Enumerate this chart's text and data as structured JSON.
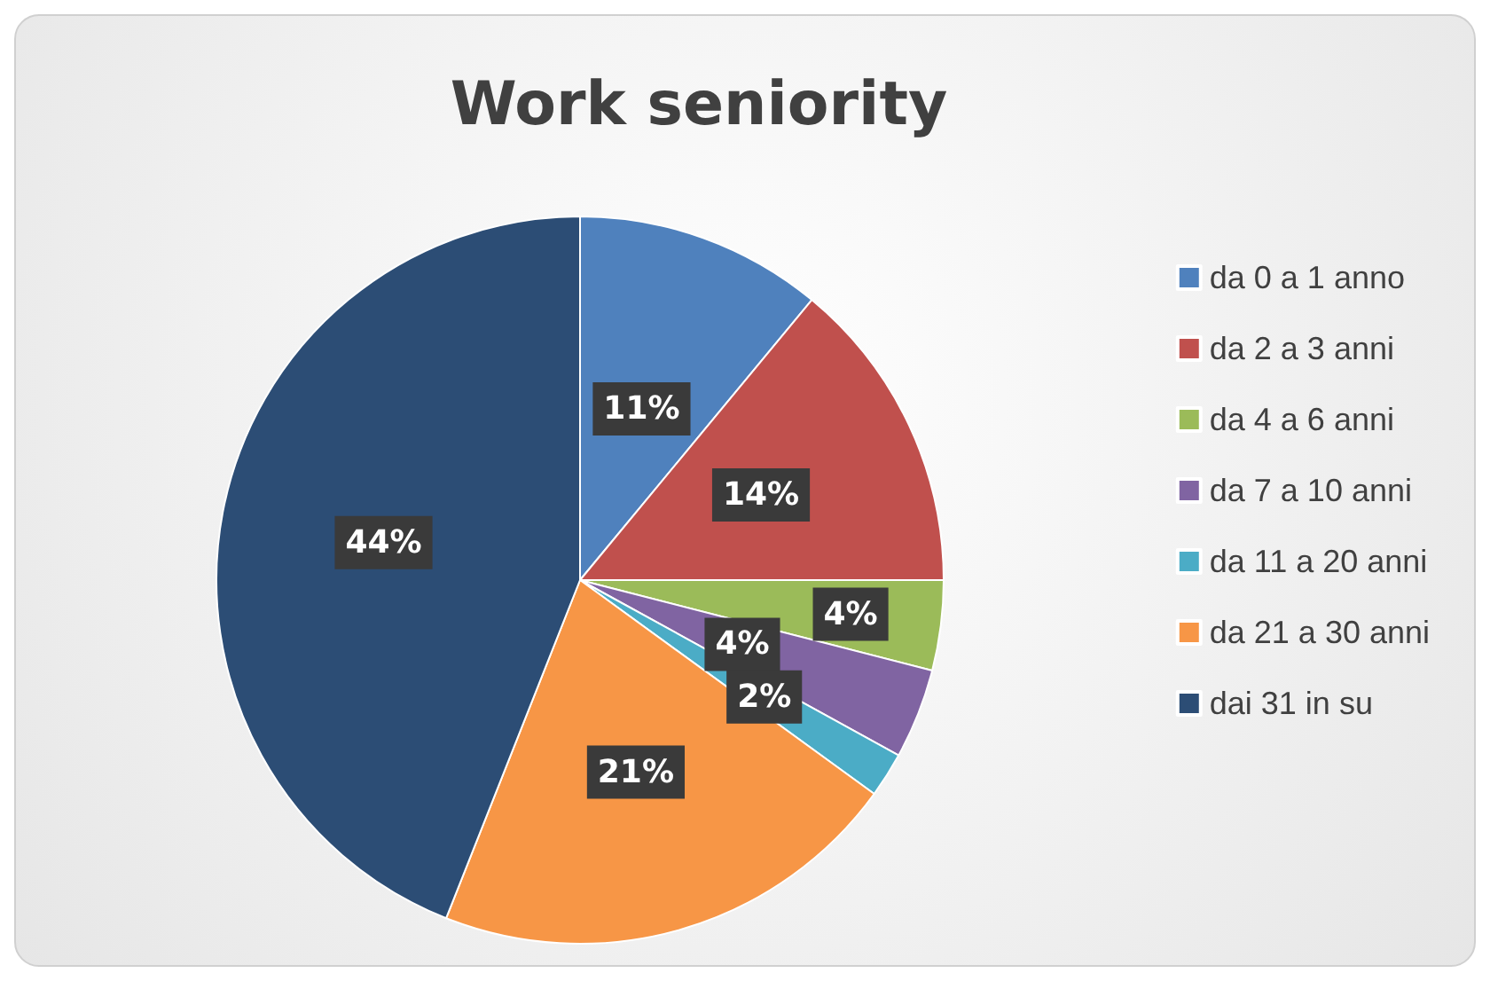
{
  "chart_data": {
    "type": "pie",
    "title": "Work seniority",
    "categories": [
      "da 0 a 1 anno",
      "da 2 a 3 anni",
      "da 4 a 6 anni",
      "da 7 a 10 anni",
      "da 11 a 20 anni",
      "da 21 a 30 anni",
      "dai 31 in su"
    ],
    "values": [
      11,
      14,
      4,
      4,
      2,
      21,
      44
    ],
    "colors": [
      "#4f81bd",
      "#c0504d",
      "#9bbb59",
      "#8064a2",
      "#4bacc6",
      "#f79646",
      "#2c4d75"
    ],
    "value_labels": [
      "11%",
      "14%",
      "4%",
      "4%",
      "2%",
      "21%",
      "44%"
    ],
    "legend": "right"
  }
}
